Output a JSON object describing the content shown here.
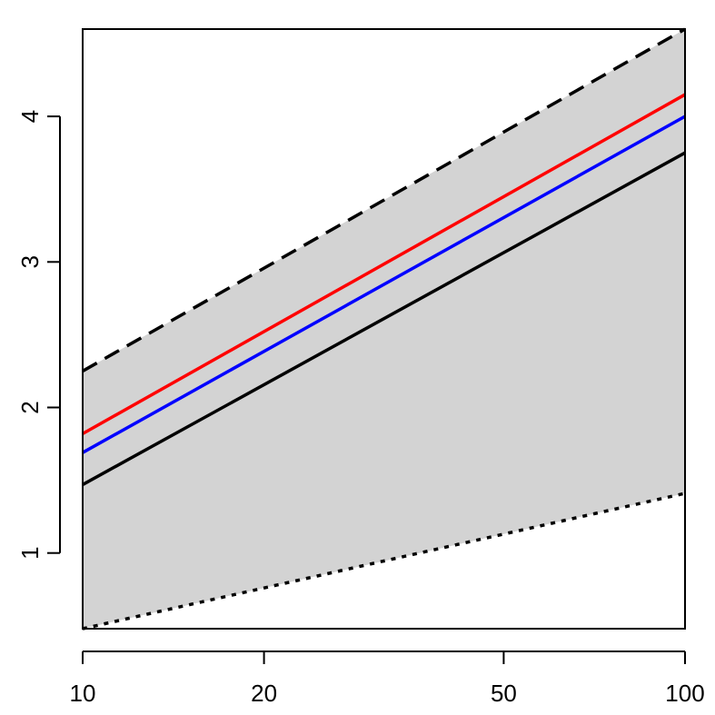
{
  "chart_data": {
    "type": "line",
    "x_scale": "log",
    "xlim": [
      10,
      100
    ],
    "ylim": [
      0.48,
      4.6
    ],
    "x_ticks": [
      10,
      20,
      50,
      100
    ],
    "x_tick_labels": [
      "10",
      "20",
      "50",
      "100"
    ],
    "y_ticks": [
      1,
      2,
      3,
      4
    ],
    "y_tick_labels": [
      "1",
      "2",
      "3",
      "4"
    ],
    "grid": false,
    "band": {
      "x": [
        10,
        100
      ],
      "upper": [
        2.25,
        4.6
      ],
      "lower": [
        0.48,
        1.41
      ],
      "color": "#d3d3d3"
    },
    "series": [
      {
        "x": [
          10,
          100
        ],
        "values": [
          2.25,
          4.6
        ],
        "color": "#000000",
        "dash": "dashed"
      },
      {
        "x": [
          10,
          100
        ],
        "values": [
          1.82,
          4.15
        ],
        "color": "#ff0000",
        "dash": "solid"
      },
      {
        "x": [
          10,
          100
        ],
        "values": [
          1.69,
          4.0
        ],
        "color": "#0000ff",
        "dash": "solid"
      },
      {
        "x": [
          10,
          100
        ],
        "values": [
          1.47,
          3.75
        ],
        "color": "#000000",
        "dash": "solid"
      },
      {
        "x": [
          10,
          100
        ],
        "values": [
          0.48,
          1.41
        ],
        "color": "#000000",
        "dash": "dotted"
      }
    ]
  }
}
